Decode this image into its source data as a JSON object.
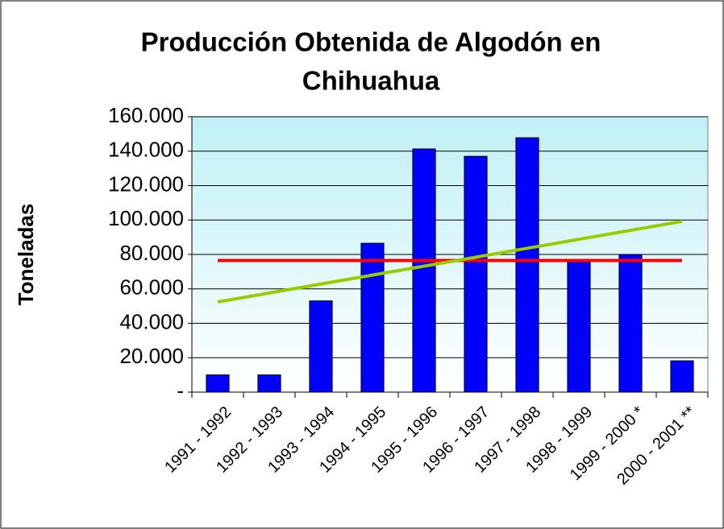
{
  "chart_data": {
    "type": "bar",
    "title": [
      "Producción Obtenida de Algodón en",
      "Chihuahua"
    ],
    "y_label": "Toneladas",
    "categories": [
      "1991 - 1992",
      "1992 - 1993",
      "1993 - 1994",
      "1994 - 1995",
      "1995 - 1996",
      "1996 - 1997",
      "1997 - 1998",
      "1998 - 1999",
      "1999 - 2000 *",
      "2000 - 2001 **"
    ],
    "values": [
      10000,
      10000,
      53000,
      86500,
      141300,
      137000,
      147800,
      76300,
      80000,
      18200
    ],
    "color": "#0000ff",
    "lines": [
      {
        "color": "#ff0000",
        "values": [
          76500,
          76500,
          76500,
          76500,
          76500,
          76500,
          76500,
          76500,
          76500,
          76500
        ]
      },
      {
        "color": "#99cc00",
        "values": [
          52400,
          57600,
          62800,
          68000,
          73200,
          78400,
          83600,
          88800,
          94000,
          99200
        ]
      }
    ],
    "ylim": [
      0,
      160000
    ],
    "yticks": [
      {
        "value": 0,
        "label": "-"
      },
      {
        "value": 20000,
        "label": "20.000"
      },
      {
        "value": 40000,
        "label": "40.000"
      },
      {
        "value": 60000,
        "label": "60.000"
      },
      {
        "value": 80000,
        "label": "80.000"
      },
      {
        "value": 100000,
        "label": "100.000"
      },
      {
        "value": 120000,
        "label": "120.000"
      },
      {
        "value": 140000,
        "label": "140.000"
      },
      {
        "value": 160000,
        "label": "160.000"
      }
    ],
    "grid": true
  }
}
